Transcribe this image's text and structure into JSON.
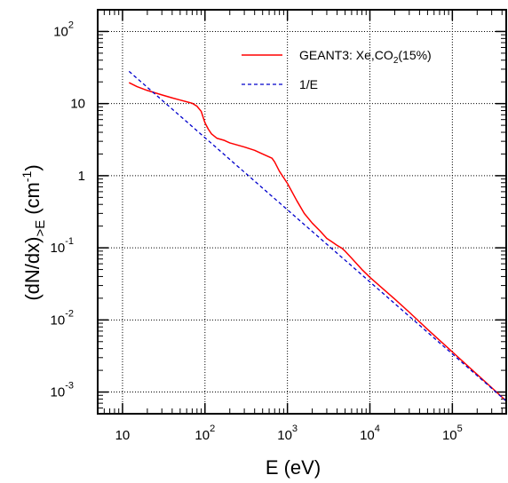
{
  "chart_data": {
    "type": "line",
    "xlabel": "E (eV)",
    "ylabel": "(dN/dx)",
    "ylabel_subscript": ">E",
    "ylabel_unit": "(cm",
    "ylabel_unit_exp": "-1",
    "ylabel_unit_close": ")",
    "x_scale": "log",
    "y_scale": "log",
    "xlim": [
      5,
      450000
    ],
    "ylim": [
      0.0005,
      200
    ],
    "grid": true,
    "legend_position": "top-right",
    "x_ticks": [
      {
        "value": 10,
        "base": "10",
        "exp": ""
      },
      {
        "value": 100,
        "base": "10",
        "exp": "2"
      },
      {
        "value": 1000,
        "base": "10",
        "exp": "3"
      },
      {
        "value": 10000,
        "base": "10",
        "exp": "4"
      },
      {
        "value": 100000,
        "base": "10",
        "exp": "5"
      }
    ],
    "y_ticks": [
      {
        "value": 100,
        "base": "10",
        "exp": "2"
      },
      {
        "value": 10,
        "base": "10",
        "exp": ""
      },
      {
        "value": 1,
        "base": "1",
        "exp": ""
      },
      {
        "value": 0.1,
        "base": "10",
        "exp": "-1"
      },
      {
        "value": 0.01,
        "base": "10",
        "exp": "-2"
      },
      {
        "value": 0.001,
        "base": "10",
        "exp": "-3"
      }
    ],
    "series": [
      {
        "name": "GEANT3: Xe,CO",
        "name_sub": "2",
        "name_tail": "(15%)",
        "color": "#ff0000",
        "dash": "solid",
        "x": [
          12,
          15,
          20,
          30,
          40,
          50,
          60,
          70,
          80,
          90,
          100,
          110,
          120,
          140,
          170,
          200,
          300,
          400,
          500,
          650,
          700,
          800,
          1000,
          1300,
          1600,
          2000,
          2500,
          3000,
          3500,
          4000,
          4500,
          5000,
          6000,
          8000,
          10000,
          15000,
          20000,
          30000,
          50000,
          100000,
          200000,
          300000,
          450000
        ],
        "y": [
          19.5,
          17.2,
          15.2,
          13.2,
          12.0,
          11.2,
          10.6,
          10.1,
          9.2,
          7.8,
          5.4,
          4.4,
          3.8,
          3.3,
          3.1,
          2.85,
          2.5,
          2.25,
          2.0,
          1.75,
          1.55,
          1.15,
          0.78,
          0.45,
          0.3,
          0.22,
          0.17,
          0.135,
          0.12,
          0.108,
          0.1,
          0.09,
          0.072,
          0.05,
          0.039,
          0.026,
          0.0195,
          0.0128,
          0.0074,
          0.0036,
          0.00175,
          0.00115,
          0.00075
        ]
      },
      {
        "name": "1/E",
        "color": "#0000cc",
        "dash": "dashed",
        "x": [
          12,
          450000
        ],
        "y": [
          28,
          0.00075
        ]
      }
    ]
  }
}
